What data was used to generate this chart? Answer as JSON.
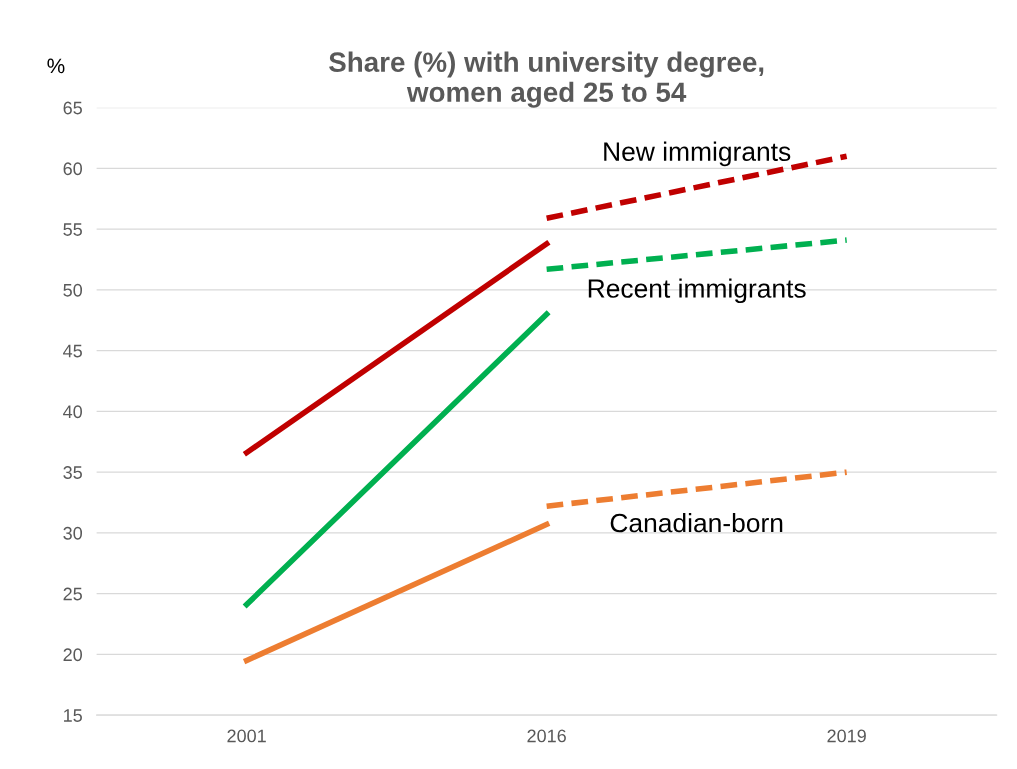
{
  "chart_data": {
    "type": "line",
    "title": "Share (%) with university degree,\nwomen aged 25 to 54",
    "ylabel": "%",
    "categories": [
      "2001",
      "2016",
      "2019"
    ],
    "series": [
      {
        "color": "#c00000",
        "values": [
          36.6,
          53.8,
          null
        ],
        "line_style": "solid"
      },
      {
        "color": "#00b050",
        "values": [
          24.1,
          48.0,
          null
        ],
        "line_style": "solid"
      },
      {
        "color": "#ed7d31",
        "values": [
          19.5,
          30.7,
          null
        ],
        "line_style": "solid"
      },
      {
        "name": "New immigrants",
        "color": "#c00000",
        "values": [
          null,
          55.9,
          61.0
        ],
        "line_style": "dashed"
      },
      {
        "name": "Recent immigrants",
        "color": "#00b050",
        "values": [
          null,
          51.7,
          54.1
        ],
        "line_style": "dashed"
      },
      {
        "name": "Canadian-born",
        "color": "#ed7d31",
        "values": [
          null,
          32.2,
          35.0
        ],
        "line_style": "dashed"
      }
    ],
    "ylim": [
      15,
      65
    ],
    "yticks": [
      15,
      20,
      25,
      30,
      35,
      40,
      45,
      50,
      55,
      60,
      65
    ],
    "grid": "y",
    "legend": false,
    "marker": "none"
  }
}
